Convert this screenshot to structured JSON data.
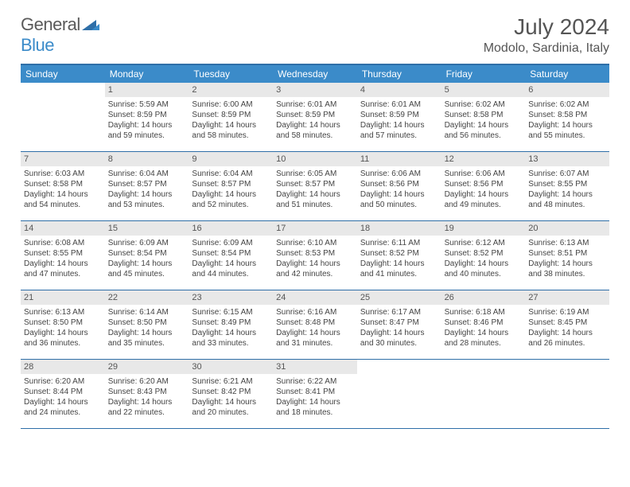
{
  "brand": {
    "part1": "General",
    "part2": "Blue"
  },
  "title": "July 2024",
  "location": "Modolo, Sardinia, Italy",
  "colors": {
    "header_bg": "#3b8bc9",
    "border": "#2f6fa8",
    "daynum_bg": "#e8e8e8",
    "text": "#444444"
  },
  "day_headers": [
    "Sunday",
    "Monday",
    "Tuesday",
    "Wednesday",
    "Thursday",
    "Friday",
    "Saturday"
  ],
  "weeks": [
    [
      null,
      {
        "n": "1",
        "sr": "Sunrise: 5:59 AM",
        "ss": "Sunset: 8:59 PM",
        "dl": "Daylight: 14 hours and 59 minutes."
      },
      {
        "n": "2",
        "sr": "Sunrise: 6:00 AM",
        "ss": "Sunset: 8:59 PM",
        "dl": "Daylight: 14 hours and 58 minutes."
      },
      {
        "n": "3",
        "sr": "Sunrise: 6:01 AM",
        "ss": "Sunset: 8:59 PM",
        "dl": "Daylight: 14 hours and 58 minutes."
      },
      {
        "n": "4",
        "sr": "Sunrise: 6:01 AM",
        "ss": "Sunset: 8:59 PM",
        "dl": "Daylight: 14 hours and 57 minutes."
      },
      {
        "n": "5",
        "sr": "Sunrise: 6:02 AM",
        "ss": "Sunset: 8:58 PM",
        "dl": "Daylight: 14 hours and 56 minutes."
      },
      {
        "n": "6",
        "sr": "Sunrise: 6:02 AM",
        "ss": "Sunset: 8:58 PM",
        "dl": "Daylight: 14 hours and 55 minutes."
      }
    ],
    [
      {
        "n": "7",
        "sr": "Sunrise: 6:03 AM",
        "ss": "Sunset: 8:58 PM",
        "dl": "Daylight: 14 hours and 54 minutes."
      },
      {
        "n": "8",
        "sr": "Sunrise: 6:04 AM",
        "ss": "Sunset: 8:57 PM",
        "dl": "Daylight: 14 hours and 53 minutes."
      },
      {
        "n": "9",
        "sr": "Sunrise: 6:04 AM",
        "ss": "Sunset: 8:57 PM",
        "dl": "Daylight: 14 hours and 52 minutes."
      },
      {
        "n": "10",
        "sr": "Sunrise: 6:05 AM",
        "ss": "Sunset: 8:57 PM",
        "dl": "Daylight: 14 hours and 51 minutes."
      },
      {
        "n": "11",
        "sr": "Sunrise: 6:06 AM",
        "ss": "Sunset: 8:56 PM",
        "dl": "Daylight: 14 hours and 50 minutes."
      },
      {
        "n": "12",
        "sr": "Sunrise: 6:06 AM",
        "ss": "Sunset: 8:56 PM",
        "dl": "Daylight: 14 hours and 49 minutes."
      },
      {
        "n": "13",
        "sr": "Sunrise: 6:07 AM",
        "ss": "Sunset: 8:55 PM",
        "dl": "Daylight: 14 hours and 48 minutes."
      }
    ],
    [
      {
        "n": "14",
        "sr": "Sunrise: 6:08 AM",
        "ss": "Sunset: 8:55 PM",
        "dl": "Daylight: 14 hours and 47 minutes."
      },
      {
        "n": "15",
        "sr": "Sunrise: 6:09 AM",
        "ss": "Sunset: 8:54 PM",
        "dl": "Daylight: 14 hours and 45 minutes."
      },
      {
        "n": "16",
        "sr": "Sunrise: 6:09 AM",
        "ss": "Sunset: 8:54 PM",
        "dl": "Daylight: 14 hours and 44 minutes."
      },
      {
        "n": "17",
        "sr": "Sunrise: 6:10 AM",
        "ss": "Sunset: 8:53 PM",
        "dl": "Daylight: 14 hours and 42 minutes."
      },
      {
        "n": "18",
        "sr": "Sunrise: 6:11 AM",
        "ss": "Sunset: 8:52 PM",
        "dl": "Daylight: 14 hours and 41 minutes."
      },
      {
        "n": "19",
        "sr": "Sunrise: 6:12 AM",
        "ss": "Sunset: 8:52 PM",
        "dl": "Daylight: 14 hours and 40 minutes."
      },
      {
        "n": "20",
        "sr": "Sunrise: 6:13 AM",
        "ss": "Sunset: 8:51 PM",
        "dl": "Daylight: 14 hours and 38 minutes."
      }
    ],
    [
      {
        "n": "21",
        "sr": "Sunrise: 6:13 AM",
        "ss": "Sunset: 8:50 PM",
        "dl": "Daylight: 14 hours and 36 minutes."
      },
      {
        "n": "22",
        "sr": "Sunrise: 6:14 AM",
        "ss": "Sunset: 8:50 PM",
        "dl": "Daylight: 14 hours and 35 minutes."
      },
      {
        "n": "23",
        "sr": "Sunrise: 6:15 AM",
        "ss": "Sunset: 8:49 PM",
        "dl": "Daylight: 14 hours and 33 minutes."
      },
      {
        "n": "24",
        "sr": "Sunrise: 6:16 AM",
        "ss": "Sunset: 8:48 PM",
        "dl": "Daylight: 14 hours and 31 minutes."
      },
      {
        "n": "25",
        "sr": "Sunrise: 6:17 AM",
        "ss": "Sunset: 8:47 PM",
        "dl": "Daylight: 14 hours and 30 minutes."
      },
      {
        "n": "26",
        "sr": "Sunrise: 6:18 AM",
        "ss": "Sunset: 8:46 PM",
        "dl": "Daylight: 14 hours and 28 minutes."
      },
      {
        "n": "27",
        "sr": "Sunrise: 6:19 AM",
        "ss": "Sunset: 8:45 PM",
        "dl": "Daylight: 14 hours and 26 minutes."
      }
    ],
    [
      {
        "n": "28",
        "sr": "Sunrise: 6:20 AM",
        "ss": "Sunset: 8:44 PM",
        "dl": "Daylight: 14 hours and 24 minutes."
      },
      {
        "n": "29",
        "sr": "Sunrise: 6:20 AM",
        "ss": "Sunset: 8:43 PM",
        "dl": "Daylight: 14 hours and 22 minutes."
      },
      {
        "n": "30",
        "sr": "Sunrise: 6:21 AM",
        "ss": "Sunset: 8:42 PM",
        "dl": "Daylight: 14 hours and 20 minutes."
      },
      {
        "n": "31",
        "sr": "Sunrise: 6:22 AM",
        "ss": "Sunset: 8:41 PM",
        "dl": "Daylight: 14 hours and 18 minutes."
      },
      null,
      null,
      null
    ]
  ]
}
